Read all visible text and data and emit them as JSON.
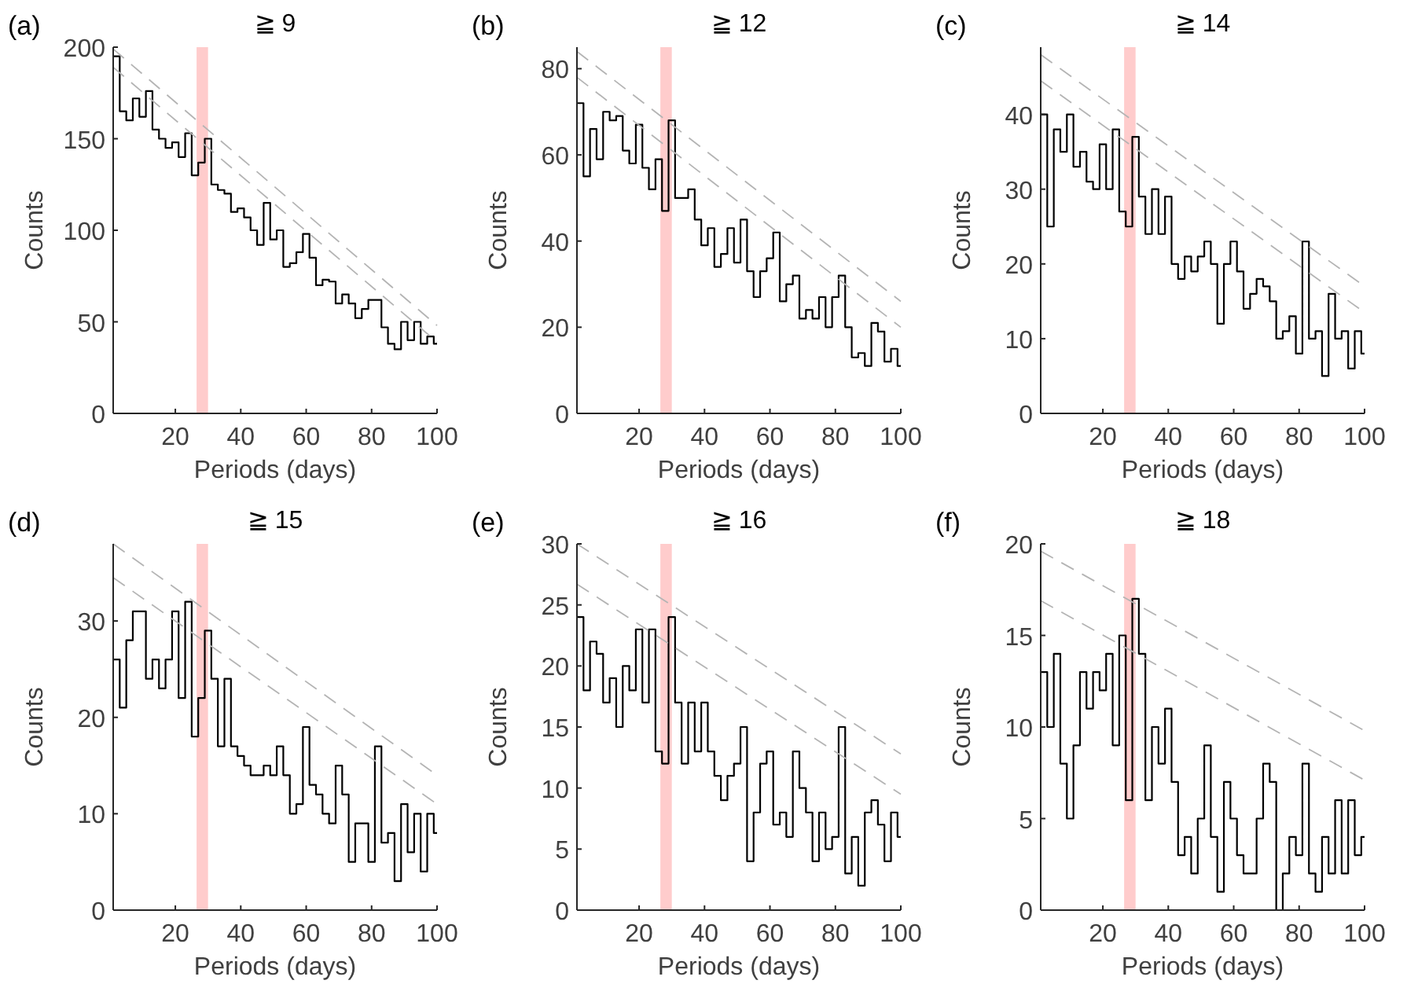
{
  "chart_data": [
    {
      "type": "step",
      "title": "≧ 9",
      "annotations": [
        "(a)"
      ],
      "xlabel": "Periods (days)",
      "ylabel": "Counts",
      "xlim": [
        1,
        100
      ],
      "xticks": [
        20,
        40,
        60,
        80,
        100
      ],
      "ylim": [
        0,
        200
      ],
      "yticks": [
        0,
        50,
        100,
        150,
        200
      ],
      "bands": [
        {
          "axis": "x",
          "from": 26.5,
          "to": 30,
          "color": "#ffcccc"
        }
      ],
      "series": [
        {
          "color": "#000000",
          "x": [
            1,
            3,
            5,
            7,
            9,
            11,
            13,
            15,
            17,
            19,
            21,
            23,
            25,
            27,
            29,
            31,
            33,
            35,
            37,
            39,
            41,
            43,
            45,
            47,
            49,
            51,
            53,
            55,
            57,
            59,
            61,
            63,
            65,
            67,
            69,
            71,
            73,
            75,
            77,
            79,
            81,
            83,
            85,
            87,
            89,
            91,
            93,
            95,
            97,
            99
          ],
          "values": [
            195,
            165,
            160,
            172,
            162,
            176,
            155,
            150,
            145,
            148,
            140,
            153,
            130,
            137,
            150,
            125,
            122,
            120,
            110,
            112,
            107,
            100,
            92,
            115,
            95,
            100,
            80,
            82,
            88,
            98,
            85,
            70,
            73,
            72,
            60,
            65,
            60,
            52,
            57,
            62,
            62,
            47,
            38,
            35,
            50,
            40,
            50,
            38,
            42,
            38
          ]
        },
        {
          "type": "line",
          "color": "#b4b4b4",
          "line_style": "dashed",
          "x": [
            1,
            100
          ],
          "values": [
            199,
            48
          ]
        },
        {
          "type": "line",
          "color": "#b4b4b4",
          "line_style": "dashed",
          "x": [
            1,
            100
          ],
          "values": [
            189,
            39
          ]
        }
      ]
    },
    {
      "type": "step",
      "title": "≧ 12",
      "annotations": [
        "(b)"
      ],
      "xlabel": "Periods (days)",
      "ylabel": "Counts",
      "xlim": [
        1,
        100
      ],
      "xticks": [
        20,
        40,
        60,
        80,
        100
      ],
      "ylim": [
        0,
        85
      ],
      "yticks": [
        0,
        20,
        40,
        60,
        80
      ],
      "bands": [
        {
          "axis": "x",
          "from": 26.5,
          "to": 30,
          "color": "#ffcccc"
        }
      ],
      "series": [
        {
          "color": "#000000",
          "x": [
            1,
            3,
            5,
            7,
            9,
            11,
            13,
            15,
            17,
            19,
            21,
            23,
            25,
            27,
            29,
            31,
            33,
            35,
            37,
            39,
            41,
            43,
            45,
            47,
            49,
            51,
            53,
            55,
            57,
            59,
            61,
            63,
            65,
            67,
            69,
            71,
            73,
            75,
            77,
            79,
            81,
            83,
            85,
            87,
            89,
            91,
            93,
            95,
            97,
            99
          ],
          "values": [
            72,
            55,
            66,
            59,
            70,
            68,
            69,
            61,
            58,
            67,
            57,
            52,
            59,
            47,
            68,
            50,
            50,
            52,
            45,
            39,
            43,
            34,
            37,
            43,
            35,
            45,
            33,
            27,
            33,
            36,
            42,
            26,
            30,
            32,
            22,
            24,
            22,
            27,
            20,
            27,
            32,
            20,
            13,
            14,
            11,
            21,
            19,
            12,
            15,
            11
          ]
        },
        {
          "type": "line",
          "color": "#b4b4b4",
          "line_style": "dashed",
          "x": [
            1,
            100
          ],
          "values": [
            84,
            26
          ]
        },
        {
          "type": "line",
          "color": "#b4b4b4",
          "line_style": "dashed",
          "x": [
            1,
            100
          ],
          "values": [
            78,
            20
          ]
        }
      ]
    },
    {
      "type": "step",
      "title": "≧ 14",
      "annotations": [
        "(c)"
      ],
      "xlabel": "Periods (days)",
      "ylabel": "Counts",
      "xlim": [
        1,
        100
      ],
      "xticks": [
        20,
        40,
        60,
        80,
        100
      ],
      "ylim": [
        0,
        49
      ],
      "yticks": [
        0,
        10,
        20,
        30,
        40
      ],
      "bands": [
        {
          "axis": "x",
          "from": 26.5,
          "to": 30,
          "color": "#ffcccc"
        }
      ],
      "series": [
        {
          "color": "#000000",
          "x": [
            1,
            3,
            5,
            7,
            9,
            11,
            13,
            15,
            17,
            19,
            21,
            23,
            25,
            27,
            29,
            31,
            33,
            35,
            37,
            39,
            41,
            43,
            45,
            47,
            49,
            51,
            53,
            55,
            57,
            59,
            61,
            63,
            65,
            67,
            69,
            71,
            73,
            75,
            77,
            79,
            81,
            83,
            85,
            87,
            89,
            91,
            93,
            95,
            97,
            99
          ],
          "values": [
            40,
            25,
            38,
            35,
            40,
            33,
            35,
            31,
            30,
            36,
            30,
            38,
            27,
            25,
            37,
            29,
            24,
            30,
            24,
            29,
            20,
            18,
            21,
            19,
            21,
            23,
            20,
            12,
            20,
            23,
            19,
            14,
            16,
            18,
            17,
            15,
            10,
            11,
            13,
            8,
            23,
            10,
            11,
            5,
            16,
            10,
            11,
            6,
            11,
            8
          ]
        },
        {
          "type": "line",
          "color": "#b4b4b4",
          "line_style": "dashed",
          "x": [
            1,
            100
          ],
          "values": [
            48,
            17
          ]
        },
        {
          "type": "line",
          "color": "#b4b4b4",
          "line_style": "dashed",
          "x": [
            1,
            100
          ],
          "values": [
            44.5,
            13.5
          ]
        }
      ]
    },
    {
      "type": "step",
      "title": "≧ 15",
      "annotations": [
        "(d)"
      ],
      "xlabel": "Periods (days)",
      "ylabel": "Counts",
      "xlim": [
        1,
        100
      ],
      "xticks": [
        20,
        40,
        60,
        80,
        100
      ],
      "ylim": [
        0,
        38
      ],
      "yticks": [
        0,
        10,
        20,
        30
      ],
      "bands": [
        {
          "axis": "x",
          "from": 26.5,
          "to": 30,
          "color": "#ffcccc"
        }
      ],
      "series": [
        {
          "color": "#000000",
          "x": [
            1,
            3,
            5,
            7,
            9,
            11,
            13,
            15,
            17,
            19,
            21,
            23,
            25,
            27,
            29,
            31,
            33,
            35,
            37,
            39,
            41,
            43,
            45,
            47,
            49,
            51,
            53,
            55,
            57,
            59,
            61,
            63,
            65,
            67,
            69,
            71,
            73,
            75,
            77,
            79,
            81,
            83,
            85,
            87,
            89,
            91,
            93,
            95,
            97,
            99
          ],
          "values": [
            26,
            21,
            28,
            31,
            31,
            24,
            26,
            23,
            26,
            31,
            22,
            32,
            18,
            22,
            29,
            24,
            17,
            24,
            17,
            16,
            15,
            14,
            14,
            15,
            14,
            17,
            14,
            10,
            11,
            19,
            13,
            12,
            10,
            9,
            15,
            12,
            5,
            9,
            9,
            5,
            17,
            7,
            8,
            3,
            11,
            6,
            10,
            4,
            10,
            8
          ]
        },
        {
          "type": "line",
          "color": "#b4b4b4",
          "line_style": "dashed",
          "x": [
            1,
            100
          ],
          "values": [
            38,
            14
          ]
        },
        {
          "type": "line",
          "color": "#b4b4b4",
          "line_style": "dashed",
          "x": [
            1,
            100
          ],
          "values": [
            34.5,
            11
          ]
        }
      ]
    },
    {
      "type": "step",
      "title": "≧ 16",
      "annotations": [
        "(e)"
      ],
      "xlabel": "Periods (days)",
      "ylabel": "Counts",
      "xlim": [
        1,
        100
      ],
      "xticks": [
        20,
        40,
        60,
        80,
        100
      ],
      "ylim": [
        0,
        30
      ],
      "yticks": [
        0,
        5,
        10,
        15,
        20,
        25,
        30
      ],
      "bands": [
        {
          "axis": "x",
          "from": 26.5,
          "to": 30,
          "color": "#ffcccc"
        }
      ],
      "series": [
        {
          "color": "#000000",
          "x": [
            1,
            3,
            5,
            7,
            9,
            11,
            13,
            15,
            17,
            19,
            21,
            23,
            25,
            27,
            29,
            31,
            33,
            35,
            37,
            39,
            41,
            43,
            45,
            47,
            49,
            51,
            53,
            55,
            57,
            59,
            61,
            63,
            65,
            67,
            69,
            71,
            73,
            75,
            77,
            79,
            81,
            83,
            85,
            87,
            89,
            91,
            93,
            95,
            97,
            99
          ],
          "values": [
            24,
            18,
            22,
            21,
            17,
            19,
            15,
            20,
            18,
            23,
            17,
            23,
            13,
            12,
            24,
            17,
            12,
            17,
            13,
            17,
            13,
            11,
            9,
            11,
            12,
            15,
            4,
            8,
            12,
            13,
            7,
            8,
            6,
            13,
            10,
            8,
            4,
            8,
            5,
            6,
            15,
            3,
            6,
            2,
            8,
            9,
            7,
            4,
            8,
            6
          ]
        },
        {
          "type": "line",
          "color": "#b4b4b4",
          "line_style": "dashed",
          "x": [
            1,
            100
          ],
          "values": [
            30,
            12.8
          ]
        },
        {
          "type": "line",
          "color": "#b4b4b4",
          "line_style": "dashed",
          "x": [
            1,
            100
          ],
          "values": [
            26.7,
            9.5
          ]
        }
      ]
    },
    {
      "type": "step",
      "title": "≧ 18",
      "annotations": [
        "(f)"
      ],
      "xlabel": "Periods (days)",
      "ylabel": "Counts",
      "xlim": [
        1,
        100
      ],
      "xticks": [
        20,
        40,
        60,
        80,
        100
      ],
      "ylim": [
        0,
        20
      ],
      "yticks": [
        0,
        5,
        10,
        15,
        20
      ],
      "bands": [
        {
          "axis": "x",
          "from": 26.5,
          "to": 30,
          "color": "#ffcccc"
        }
      ],
      "series": [
        {
          "color": "#000000",
          "x": [
            1,
            3,
            5,
            7,
            9,
            11,
            13,
            15,
            17,
            19,
            21,
            23,
            25,
            27,
            29,
            31,
            33,
            35,
            37,
            39,
            41,
            43,
            45,
            47,
            49,
            51,
            53,
            55,
            57,
            59,
            61,
            63,
            65,
            67,
            69,
            71,
            73,
            75,
            77,
            79,
            81,
            83,
            85,
            87,
            89,
            91,
            93,
            95,
            97,
            99
          ],
          "values": [
            13,
            10,
            14,
            8,
            5,
            9,
            13,
            11,
            13,
            12,
            14,
            9,
            15,
            6,
            17,
            14,
            6,
            10,
            8,
            11,
            7,
            3,
            4,
            2,
            5,
            9,
            4,
            1,
            7,
            5,
            3,
            2,
            2,
            5,
            8,
            7,
            0,
            2,
            4,
            3,
            8,
            2,
            1,
            4,
            2,
            6,
            2,
            6,
            3,
            4
          ]
        },
        {
          "type": "line",
          "color": "#b4b4b4",
          "line_style": "dashed",
          "x": [
            1,
            100
          ],
          "values": [
            19.6,
            9.8
          ]
        },
        {
          "type": "line",
          "color": "#b4b4b4",
          "line_style": "dashed",
          "x": [
            1,
            100
          ],
          "values": [
            16.9,
            7.1
          ]
        }
      ]
    }
  ]
}
